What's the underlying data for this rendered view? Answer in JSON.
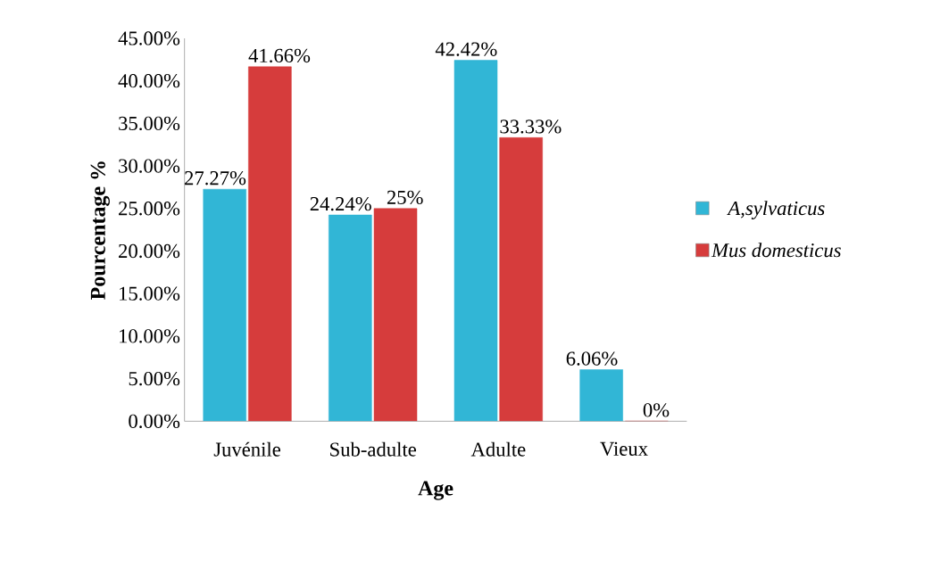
{
  "chart_data": {
    "type": "bar",
    "xlabel": "Age",
    "ylabel": "Pourcentage %",
    "categories": [
      "Juvénile",
      "Sub-adulte",
      "Adulte",
      "Vieux"
    ],
    "series": [
      {
        "name": "A,sylvaticus",
        "color": "#31b6d6",
        "values": [
          27.27,
          24.24,
          42.42,
          6.06
        ],
        "value_labels": [
          "27.27%",
          "24.24%",
          "42.42%",
          "6.06%"
        ]
      },
      {
        "name": "Mus domesticus",
        "color": "#d63c3c",
        "values": [
          41.66,
          25,
          33.33,
          0
        ],
        "value_labels": [
          "41.66%",
          "25%",
          "33.33%",
          "0%"
        ]
      }
    ],
    "ylim": [
      0,
      45
    ],
    "yticks": [
      {
        "value": 0,
        "label": "0.00%"
      },
      {
        "value": 5,
        "label": "5.00%"
      },
      {
        "value": 10,
        "label": "10.00%"
      },
      {
        "value": 15,
        "label": "15.00%"
      },
      {
        "value": 20,
        "label": "20.00%"
      },
      {
        "value": 25,
        "label": "25.00%"
      },
      {
        "value": 30,
        "label": "30.00%"
      },
      {
        "value": 35,
        "label": "35.00%"
      },
      {
        "value": 40,
        "label": "40.00%"
      },
      {
        "value": 45,
        "label": "45.00%"
      }
    ],
    "legend": "right"
  }
}
